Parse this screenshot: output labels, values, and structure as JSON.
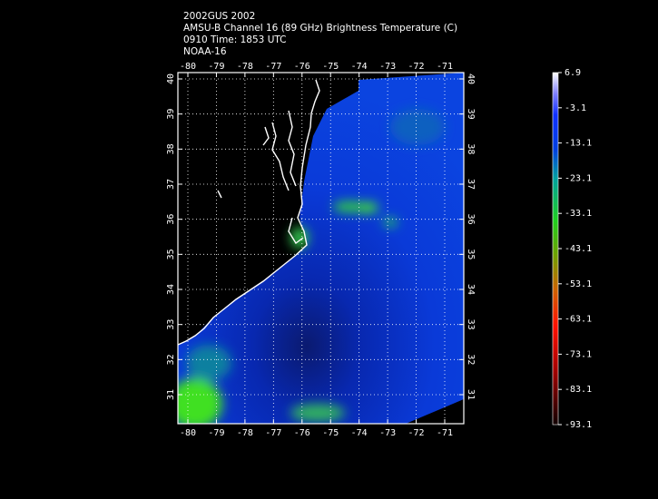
{
  "header": {
    "lines": [
      "2002GUS 2002",
      "AMSU-B Channel 16 (89 GHz) Brightness Temperature (C)",
      "0910 Time: 1853 UTC",
      "NOAA-16"
    ]
  },
  "map": {
    "lon_ticks": [
      -80,
      -79,
      -78,
      -77,
      -76,
      -75,
      -74,
      -73,
      -72,
      -71
    ],
    "lat_ticks": [
      31,
      32,
      33,
      34,
      35,
      36,
      37,
      38,
      39,
      40
    ]
  },
  "colorbar": {
    "labels": [
      6.9,
      -3.1,
      -13.1,
      -23.1,
      -33.1,
      -43.1,
      -53.1,
      -63.1,
      -73.1,
      -83.1,
      -93.1
    ]
  }
}
